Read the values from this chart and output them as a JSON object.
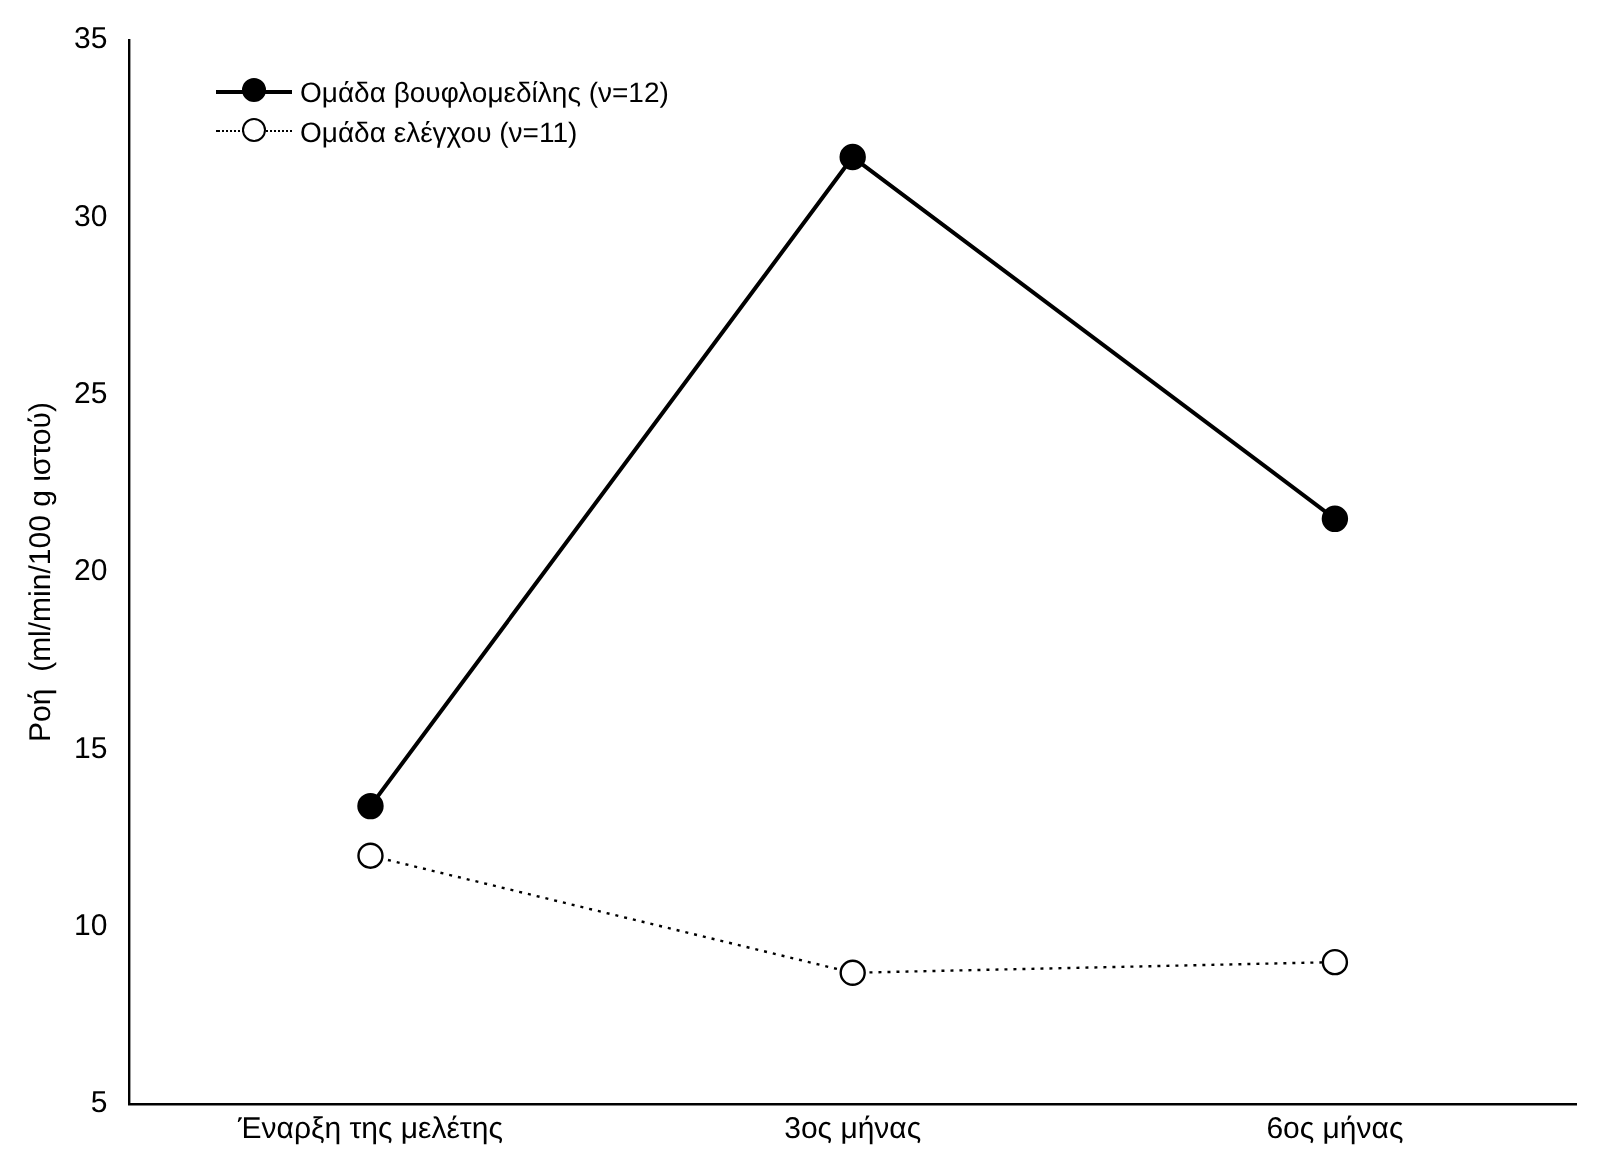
{
  "chart_data": {
    "type": "line",
    "ylabel": "Ροή  (ml/min/100 g ιστού)",
    "categories": [
      "Έναρξη της μελέτης",
      "3ος μήνας",
      "6ος μήνας"
    ],
    "ylim": [
      5,
      35
    ],
    "yticks": [
      5,
      10,
      15,
      20,
      25,
      30,
      35
    ],
    "grid": false,
    "legend": "top left",
    "marker": "circle",
    "series": [
      {
        "name": "Ομάδα βουφλομεδίλης (ν=12)",
        "color": "#000000",
        "values": [
          13.4,
          31.7,
          21.5
        ],
        "line_style": "solid"
      },
      {
        "name": "Ομάδα ελέγχου (ν=11)",
        "color": "#000000",
        "values": [
          12.0,
          8.7,
          9.0
        ],
        "line_style": "dotted"
      }
    ]
  }
}
